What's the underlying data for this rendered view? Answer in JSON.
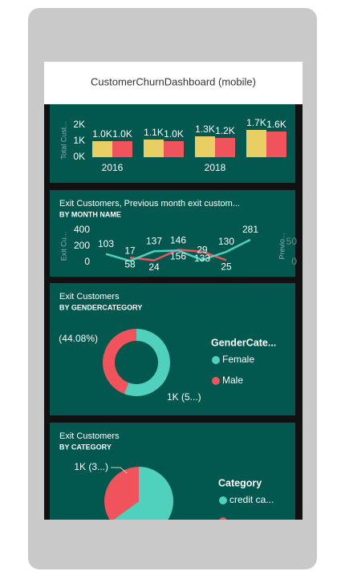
{
  "header": {
    "title": "CustomerChurnDashboard (mobile)"
  },
  "chart_data": [
    {
      "type": "bar",
      "y_label": "Total Cust...",
      "categories": [
        "2016",
        null,
        "2018",
        null
      ],
      "series": [
        {
          "color": "#e8cf63",
          "values": [
            1000,
            1100,
            1300,
            1700
          ],
          "value_labels": [
            "1.0K",
            "1.1K",
            "1.3K",
            "1.7K"
          ]
        },
        {
          "color": "#f0535c",
          "values": [
            1000,
            1000,
            1200,
            1600
          ],
          "value_labels": [
            "1.0K",
            "1.0K",
            "1.2K",
            "1.6K"
          ]
        }
      ],
      "ylim": [
        0,
        2000
      ],
      "yticks": [
        {
          "value": 0,
          "label": "0K"
        },
        {
          "value": 1000,
          "label": "1K"
        },
        {
          "value": 2000,
          "label": "2K"
        }
      ]
    },
    {
      "type": "line",
      "title": "Exit Customers, Previous month exit custom...",
      "subtitle": "BY MONTH NAME",
      "y_label": "Exit Cu...",
      "y2_label": "Previo...",
      "categories": [
        null,
        null,
        null,
        null,
        null,
        null,
        null
      ],
      "series": [
        {
          "color": "#4fd1bd",
          "values": [
            103,
            17,
            137,
            146,
            29,
            130,
            281
          ]
        },
        {
          "color": "#f0535c",
          "values": [
            null,
            58,
            24,
            156,
            133,
            25,
            null
          ]
        }
      ],
      "ylim": [
        0,
        400
      ],
      "yticks": [
        0,
        200,
        400
      ],
      "y2lim": [
        0,
        50
      ],
      "y2ticks": [
        0,
        50
      ]
    },
    {
      "type": "donut",
      "title": "Exit Customers",
      "subtitle": "BY GENDERCATEGORY",
      "legend_title": "GenderCate...",
      "categories": [
        "Female",
        "Male"
      ],
      "values": [
        55.92,
        44.08
      ],
      "value_labels": [
        "1K (5...)",
        "(44.08%)"
      ],
      "colors": [
        "#4fd1bd",
        "#f0535c"
      ]
    },
    {
      "type": "pie",
      "title": "Exit Customers",
      "subtitle": "BY CATEGORY",
      "legend_title": "Category",
      "categories": [
        "credit ca...",
        null
      ],
      "values": [
        65,
        35
      ],
      "value_labels": [
        null,
        "1K (3...)"
      ],
      "colors": [
        "#4fd1bd",
        "#f0535c"
      ]
    }
  ]
}
